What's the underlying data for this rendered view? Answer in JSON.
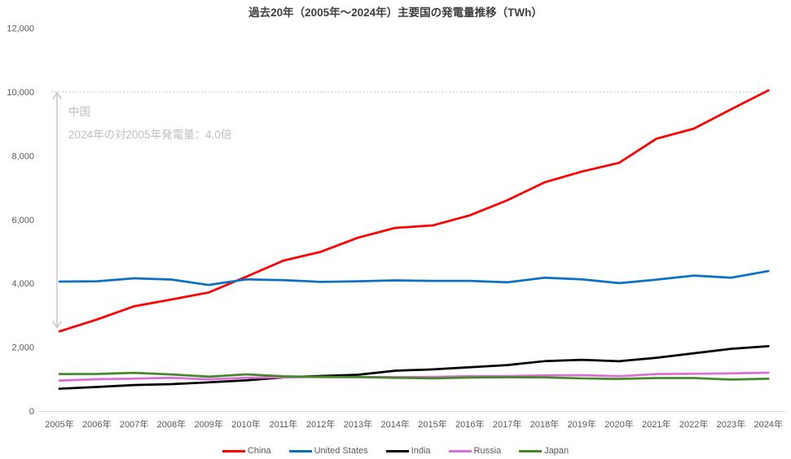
{
  "chart_data": {
    "type": "line",
    "title": "過去20年（2005年～2024年）主要国の発電量推移（TWh）",
    "xlabel": "",
    "ylabel": "",
    "ylim": [
      0,
      12000
    ],
    "grid": false,
    "legend_position": "bottom",
    "x_categories": [
      "2005年",
      "2006年",
      "2007年",
      "2008年",
      "2009年",
      "2010年",
      "2011年",
      "2012年",
      "2013年",
      "2014年",
      "2015年",
      "2016年",
      "2017年",
      "2018年",
      "2019年",
      "2020年",
      "2021年",
      "2022年",
      "2023年",
      "2024年"
    ],
    "y_ticks": [
      {
        "value": 0,
        "label": "0"
      },
      {
        "value": 2000,
        "label": "2,000"
      },
      {
        "value": 4000,
        "label": "4,000"
      },
      {
        "value": 6000,
        "label": "6,000"
      },
      {
        "value": 8000,
        "label": "8,000"
      },
      {
        "value": 10000,
        "label": "10,000"
      },
      {
        "value": 12000,
        "label": "12,000"
      }
    ],
    "series": [
      {
        "name": "China",
        "color": "#FF0000",
        "values": [
          2494,
          2866,
          3282,
          3495,
          3715,
          4207,
          4713,
          4988,
          5432,
          5740,
          5815,
          6133,
          6604,
          7166,
          7504,
          7779,
          8534,
          8849,
          9456,
          10050
        ]
      },
      {
        "name": "United States",
        "color": "#0C71C3",
        "values": [
          4055,
          4065,
          4157,
          4119,
          3950,
          4125,
          4100,
          4048,
          4066,
          4094,
          4078,
          4077,
          4034,
          4178,
          4127,
          4007,
          4116,
          4243,
          4178,
          4386
        ]
      },
      {
        "name": "India",
        "color": "#000000",
        "values": [
          699,
          753,
          813,
          843,
          899,
          960,
          1053,
          1097,
          1136,
          1262,
          1304,
          1372,
          1439,
          1561,
          1603,
          1560,
          1669,
          1809,
          1949,
          2030
        ]
      },
      {
        "name": "Russia",
        "color": "#DA70D6",
        "values": [
          953,
          996,
          1015,
          1040,
          992,
          1038,
          1055,
          1069,
          1059,
          1064,
          1068,
          1091,
          1094,
          1115,
          1122,
          1089,
          1159,
          1167,
          1180,
          1200
        ]
      },
      {
        "name": "Japan",
        "color": "#448A2B",
        "values": [
          1157,
          1161,
          1195,
          1146,
          1076,
          1148,
          1088,
          1064,
          1066,
          1041,
          1024,
          1050,
          1060,
          1051,
          1022,
          1005,
          1033,
          1034,
          985,
          1010
        ]
      }
    ],
    "annotation": {
      "line1": "中国",
      "line2": "2024年の対2005年発電量：4.0倍",
      "reference_line_value": 10000,
      "arrow_from_value": 2620,
      "arrow_to_value": 10000,
      "color": "#BFBFBF"
    },
    "style_colors": {
      "axis_text": "#595959",
      "axis_line": "#D9D9D9",
      "dotted_line": "#D0D0D0",
      "arrow": "#C9C9C9",
      "title_text": "#404040"
    }
  }
}
